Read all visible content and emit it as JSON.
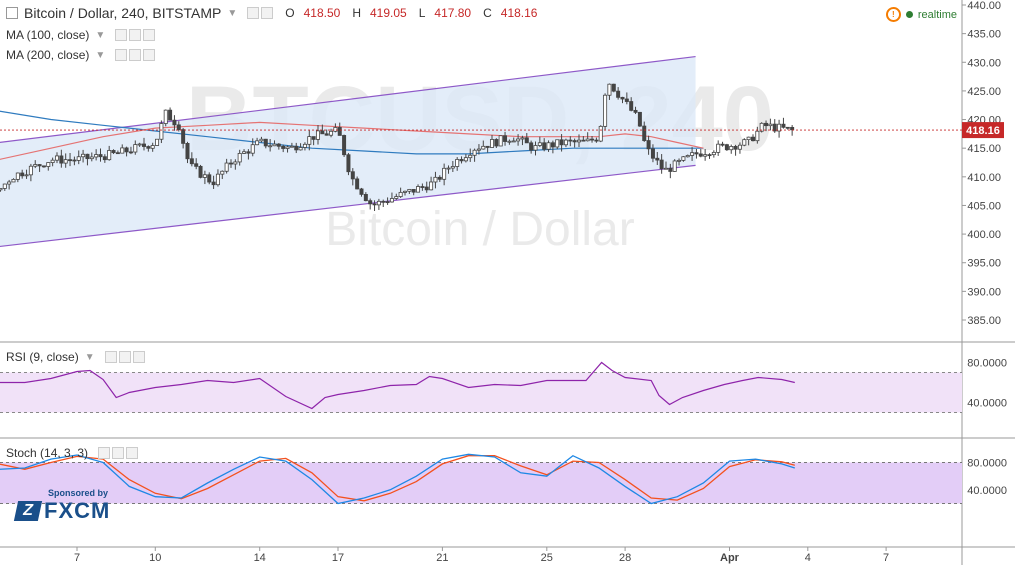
{
  "header": {
    "symbol": "Bitcoin / Dollar, 240, BITSTAMP",
    "o_label": "O",
    "o_value": "418.50",
    "h_label": "H",
    "h_value": "419.05",
    "l_label": "L",
    "l_value": "417.80",
    "c_label": "C",
    "c_value": "418.16",
    "realtime_label": "realtime"
  },
  "indicators": {
    "ma100": "MA (100, close)",
    "ma200": "MA (200, close)",
    "rsi": "RSI (9, close)",
    "stoch": "Stoch (14, 3, 3)"
  },
  "watermark": {
    "line1": "BTCUSD, 240",
    "line2": "Bitcoin / Dollar"
  },
  "logo": {
    "sponsored": "Sponsored by",
    "brand": "FXCM"
  },
  "colors": {
    "up": "#26a69a",
    "down": "#ef5350",
    "candle": "#444444",
    "ma100": "#e57373",
    "ma200": "#2f7bbf",
    "channel_line": "#8e59c8",
    "channel_fill": "#dce9f7",
    "rsi_line": "#8e24aa",
    "rsi_band": "#f1e2f8",
    "stoch_k": "#1e88e5",
    "stoch_d": "#f4511e",
    "stoch_band": "#e3cdf7",
    "price_tag": "#c62828"
  },
  "chart_data": [
    {
      "type": "candlestick",
      "title": "Bitcoin / Dollar, 240, BITSTAMP",
      "x_tick_labels": [
        "7",
        "10",
        "14",
        "17",
        "21",
        "25",
        "28",
        "Apr",
        "4",
        "7"
      ],
      "y_tick_labels": [
        "440.00",
        "435.00",
        "430.00",
        "425.00",
        "420.00",
        "415.00",
        "410.00",
        "405.00",
        "400.00",
        "395.00",
        "390.00",
        "385.00"
      ],
      "ylim": [
        381,
        440
      ],
      "last_price": "418.16",
      "close_path": [
        [
          0,
          418
        ],
        [
          1.3,
          395
        ],
        [
          2.0,
          399
        ],
        [
          3.0,
          403
        ],
        [
          4.5,
          410
        ],
        [
          6.0,
          413
        ],
        [
          7.0,
          413
        ],
        [
          8.5,
          414
        ],
        [
          10.0,
          416
        ],
        [
          10.4,
          421
        ],
        [
          10.9,
          419
        ],
        [
          11.3,
          412
        ],
        [
          12.2,
          409
        ],
        [
          13.0,
          413
        ],
        [
          14.0,
          416
        ],
        [
          15.2,
          415
        ],
        [
          16.0,
          417
        ],
        [
          17.0,
          418
        ],
        [
          17.5,
          410
        ],
        [
          18.3,
          405
        ],
        [
          19.5,
          407
        ],
        [
          20.7,
          409
        ],
        [
          21.3,
          412
        ],
        [
          22.2,
          415
        ],
        [
          23.7,
          417
        ],
        [
          24.5,
          415
        ],
        [
          25.7,
          416
        ],
        [
          26.5,
          416
        ],
        [
          27.0,
          417
        ],
        [
          27.3,
          427
        ],
        [
          28.0,
          423
        ],
        [
          28.5,
          420
        ],
        [
          28.8,
          415
        ],
        [
          29.5,
          411
        ],
        [
          30.7,
          414
        ],
        [
          31.5,
          415
        ],
        [
          32.7,
          416
        ],
        [
          33.3,
          419
        ],
        [
          34.5,
          418
        ]
      ],
      "channel": {
        "upper": [
          [
            -1.3,
            413
          ],
          [
            30.7,
            431
          ]
        ],
        "lower": [
          [
            -1.3,
            395
          ],
          [
            30.7,
            412
          ]
        ]
      },
      "ma100": [
        [
          -2,
          404
        ],
        [
          0,
          409
        ],
        [
          2,
          411
        ],
        [
          4,
          413
        ],
        [
          6,
          415
        ],
        [
          8,
          417
        ],
        [
          10,
          418.5
        ],
        [
          12,
          419
        ],
        [
          14,
          419.5
        ],
        [
          16,
          419
        ],
        [
          18,
          418.5
        ],
        [
          20,
          418
        ],
        [
          22,
          417.5
        ],
        [
          24,
          417
        ],
        [
          26,
          417
        ],
        [
          27,
          417
        ],
        [
          28,
          417.5
        ],
        [
          29,
          417
        ],
        [
          30,
          416
        ],
        [
          31,
          415
        ]
      ],
      "ma200": [
        [
          -2,
          427
        ],
        [
          0,
          424.5
        ],
        [
          2,
          423
        ],
        [
          4,
          421.5
        ],
        [
          6,
          420
        ],
        [
          8,
          419
        ],
        [
          10,
          418
        ],
        [
          12,
          417
        ],
        [
          14,
          416
        ],
        [
          16,
          415
        ],
        [
          18,
          414.5
        ],
        [
          20,
          414
        ],
        [
          22,
          414
        ],
        [
          24,
          414.5
        ],
        [
          26,
          415
        ],
        [
          28,
          415
        ],
        [
          30,
          415
        ],
        [
          31,
          415
        ]
      ]
    },
    {
      "type": "line",
      "title": "RSI (9, close)",
      "y_tick_labels": [
        "80.0000",
        "40.0000"
      ],
      "ylim": [
        26,
        88
      ],
      "band": [
        30,
        70
      ],
      "series": [
        {
          "values": [
            [
              -2,
              40
            ],
            [
              -1.5,
              32
            ],
            [
              -1,
              38
            ],
            [
              0,
              40
            ],
            [
              1,
              50
            ],
            [
              1.5,
              60
            ],
            [
              2.3,
              62
            ],
            [
              3,
              57
            ],
            [
              4,
              60
            ],
            [
              5,
              60
            ],
            [
              6,
              64
            ],
            [
              7,
              71
            ],
            [
              7.5,
              72
            ],
            [
              8,
              63
            ],
            [
              8.5,
              45
            ],
            [
              9,
              50
            ],
            [
              10,
              55
            ],
            [
              11,
              58
            ],
            [
              12,
              62
            ],
            [
              13,
              60
            ],
            [
              14,
              64
            ],
            [
              15,
              46
            ],
            [
              16,
              34
            ],
            [
              16.5,
              45
            ],
            [
              17,
              48
            ],
            [
              18,
              52
            ],
            [
              19,
              57
            ],
            [
              20,
              58
            ],
            [
              20.5,
              66
            ],
            [
              21,
              64
            ],
            [
              22,
              55
            ],
            [
              23,
              58
            ],
            [
              24,
              57
            ],
            [
              25,
              62
            ],
            [
              26.5,
              62
            ],
            [
              27.1,
              80
            ],
            [
              27.5,
              72
            ],
            [
              28,
              65
            ],
            [
              29,
              62
            ],
            [
              29.3,
              47
            ],
            [
              29.7,
              38
            ],
            [
              30.2,
              45
            ],
            [
              31,
              52
            ],
            [
              31.8,
              58
            ],
            [
              32.5,
              62
            ],
            [
              33.1,
              65
            ],
            [
              34,
              63
            ],
            [
              34.5,
              60
            ]
          ]
        }
      ]
    },
    {
      "type": "line",
      "title": "Stoch (14, 3, 3)",
      "y_tick_labels": [
        "80.0000",
        "40.0000"
      ],
      "ylim": [
        0,
        102
      ],
      "band": [
        20,
        80
      ],
      "series": [
        {
          "values": [
            [
              -2,
              30
            ],
            [
              -1.5,
              22
            ],
            [
              -1,
              25
            ],
            [
              0,
              35
            ],
            [
              1,
              65
            ],
            [
              2,
              85
            ],
            [
              3,
              88
            ],
            [
              4,
              70
            ],
            [
              5,
              72
            ],
            [
              6,
              85
            ],
            [
              7,
              91
            ],
            [
              8,
              80
            ],
            [
              9,
              45
            ],
            [
              10,
              30
            ],
            [
              11,
              28
            ],
            [
              12,
              50
            ],
            [
              13,
              70
            ],
            [
              14,
              88
            ],
            [
              15,
              82
            ],
            [
              16,
              55
            ],
            [
              17,
              20
            ],
            [
              18,
              28
            ],
            [
              19,
              40
            ],
            [
              20,
              60
            ],
            [
              21,
              85
            ],
            [
              22,
              92
            ],
            [
              23,
              88
            ],
            [
              24,
              65
            ],
            [
              25,
              60
            ],
            [
              26,
              90
            ],
            [
              27,
              72
            ],
            [
              28,
              45
            ],
            [
              29,
              20
            ],
            [
              30,
              30
            ],
            [
              31,
              50
            ],
            [
              32,
              82
            ],
            [
              33,
              85
            ],
            [
              34,
              78
            ],
            [
              34.5,
              72
            ]
          ]
        },
        {
          "values": [
            [
              -2,
              33
            ],
            [
              -1.5,
              25
            ],
            [
              -1,
              22
            ],
            [
              0,
              30
            ],
            [
              1,
              55
            ],
            [
              2,
              78
            ],
            [
              3,
              90
            ],
            [
              4,
              78
            ],
            [
              5,
              70
            ],
            [
              6,
              80
            ],
            [
              7,
              89
            ],
            [
              8,
              85
            ],
            [
              9,
              55
            ],
            [
              10,
              35
            ],
            [
              11,
              27
            ],
            [
              12,
              42
            ],
            [
              13,
              62
            ],
            [
              14,
              82
            ],
            [
              15,
              86
            ],
            [
              16,
              65
            ],
            [
              17,
              30
            ],
            [
              18,
              24
            ],
            [
              19,
              35
            ],
            [
              20,
              52
            ],
            [
              21,
              78
            ],
            [
              22,
              90
            ],
            [
              23,
              90
            ],
            [
              24,
              75
            ],
            [
              25,
              62
            ],
            [
              26,
              82
            ],
            [
              27,
              80
            ],
            [
              28,
              55
            ],
            [
              29,
              28
            ],
            [
              30,
              25
            ],
            [
              31,
              42
            ],
            [
              32,
              74
            ],
            [
              33,
              84
            ],
            [
              34,
              81
            ],
            [
              34.5,
              76
            ]
          ]
        }
      ]
    }
  ]
}
